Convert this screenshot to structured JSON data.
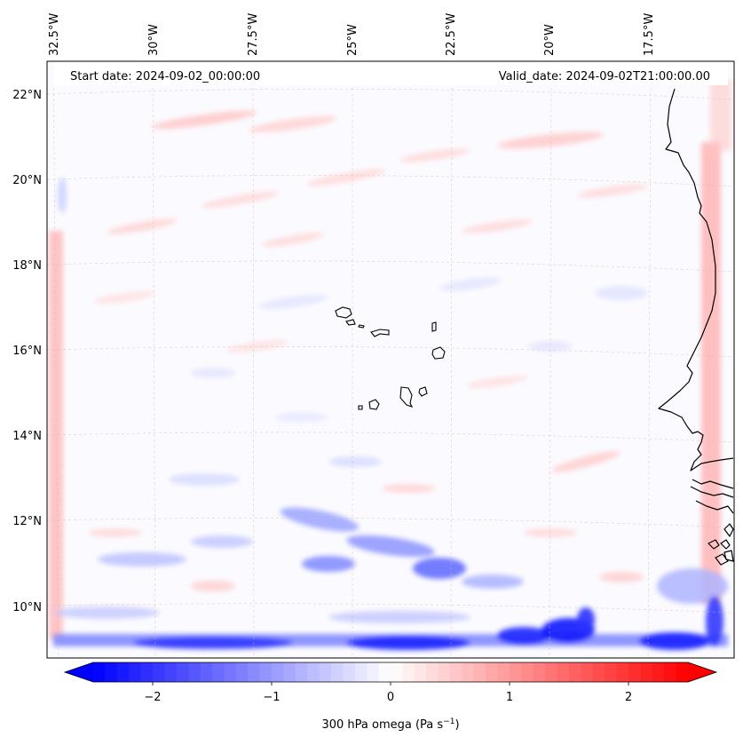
{
  "map": {
    "start_label": "Start date: 2024-09-02_00:00:00",
    "valid_label": "Valid_date: 2024-09-02T21:00:00.00",
    "lat_labels": [
      "22°N",
      "20°N",
      "18°N",
      "16°N",
      "14°N",
      "12°N",
      "10°N"
    ],
    "lon_labels": [
      "32.5°W",
      "30°W",
      "27.5°W",
      "25°W",
      "22.5°W",
      "20°W",
      "17.5°W"
    ],
    "colors": {
      "negative": "#0000ff",
      "neutral": "#ffffff",
      "positive": "#ff0000",
      "gridline": "#d9b8a8",
      "coast": "#000000"
    }
  },
  "colorbar": {
    "label": "300 hPa omega (Pa s",
    "label_sup": "−1",
    "label_close": ")",
    "ticks": [
      "−2",
      "−1",
      "0",
      "1",
      "2"
    ],
    "min": -2.75,
    "max": 2.75,
    "tick_values": [
      -2,
      -1,
      0,
      1,
      2
    ]
  }
}
